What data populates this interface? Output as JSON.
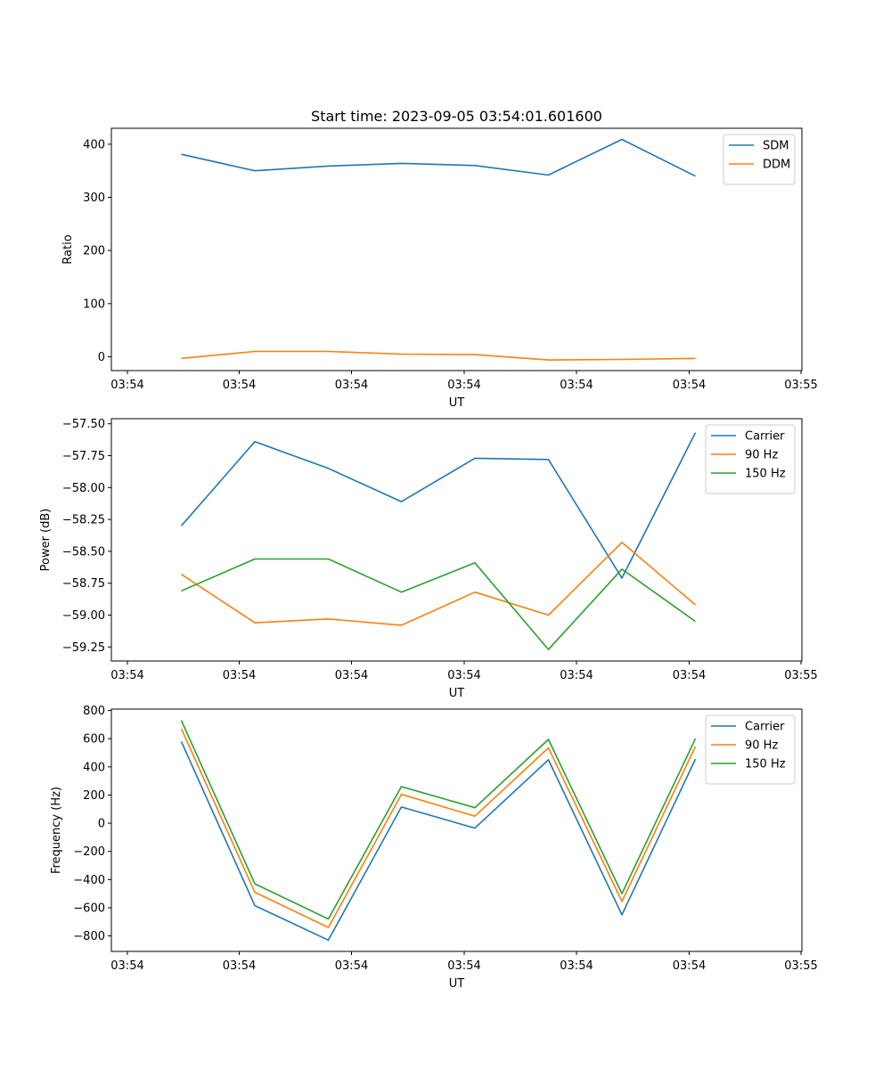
{
  "figure_title": "Start time: 2023-09-05 03:54:01.601600",
  "chart_data": [
    {
      "type": "line",
      "title": "Start time: 2023-09-05 03:54:01.601600",
      "xlabel": "UT",
      "ylabel": "Ratio",
      "x_tick_labels": [
        "03:54",
        "03:54",
        "03:54",
        "03:54",
        "03:54",
        "03:54",
        "03:55"
      ],
      "y_ticks": [
        0,
        100,
        200,
        300,
        400
      ],
      "y_tick_labels": [
        "0",
        "100",
        "200",
        "300",
        "400"
      ],
      "ylim": [
        -26,
        430
      ],
      "x": [
        1,
        2,
        3,
        4,
        5,
        6,
        7,
        8
      ],
      "legend_position": "top-right",
      "series": [
        {
          "name": "SDM",
          "color": "#1f77b4",
          "values": [
            381,
            350,
            359,
            364,
            360,
            342,
            409,
            340
          ]
        },
        {
          "name": "DDM",
          "color": "#ff7f0e",
          "values": [
            -3,
            10,
            10,
            5,
            4,
            -6,
            -5,
            -3
          ]
        }
      ]
    },
    {
      "type": "line",
      "title": "",
      "xlabel": "UT",
      "ylabel": "Power (dB)",
      "x_tick_labels": [
        "03:54",
        "03:54",
        "03:54",
        "03:54",
        "03:54",
        "03:54",
        "03:55"
      ],
      "y_ticks": [
        -57.5,
        -57.75,
        -58.0,
        -58.25,
        -58.5,
        -58.75,
        -59.0,
        -59.25
      ],
      "y_tick_labels": [
        "−57.50",
        "−57.75",
        "−58.00",
        "−58.25",
        "−58.50",
        "−58.75",
        "−59.00",
        "−59.25"
      ],
      "ylim": [
        -59.36,
        -57.46
      ],
      "x": [
        1,
        2,
        3,
        4,
        5,
        6,
        7,
        8
      ],
      "legend_position": "top-right",
      "series": [
        {
          "name": "Carrier",
          "color": "#1f77b4",
          "values": [
            -58.3,
            -57.64,
            -57.85,
            -58.11,
            -57.77,
            -57.78,
            -58.71,
            -57.57
          ]
        },
        {
          "name": "90 Hz",
          "color": "#ff7f0e",
          "values": [
            -58.68,
            -59.06,
            -59.03,
            -59.08,
            -58.82,
            -59.0,
            -58.43,
            -58.92
          ]
        },
        {
          "name": "150 Hz",
          "color": "#2ca02c",
          "values": [
            -58.81,
            -58.56,
            -58.56,
            -58.82,
            -58.59,
            -59.27,
            -58.64,
            -59.05
          ]
        }
      ]
    },
    {
      "type": "line",
      "title": "",
      "xlabel": "UT",
      "ylabel": "Frequency (Hz)",
      "x_tick_labels": [
        "03:54",
        "03:54",
        "03:54",
        "03:54",
        "03:54",
        "03:54",
        "03:55"
      ],
      "y_ticks": [
        800,
        600,
        400,
        200,
        0,
        -200,
        -400,
        -600,
        -800
      ],
      "y_tick_labels": [
        "800",
        "600",
        "400",
        "200",
        "0",
        "−200",
        "−400",
        "−600",
        "−800"
      ],
      "ylim": [
        -910,
        810
      ],
      "x": [
        1,
        2,
        3,
        4,
        5,
        6,
        7,
        8
      ],
      "legend_position": "top-right",
      "series": [
        {
          "name": "Carrier",
          "color": "#1f77b4",
          "values": [
            580,
            -585,
            -830,
            115,
            -35,
            450,
            -650,
            455
          ]
        },
        {
          "name": "90 Hz",
          "color": "#ff7f0e",
          "values": [
            670,
            -490,
            -740,
            205,
            50,
            535,
            -555,
            545
          ]
        },
        {
          "name": "150 Hz",
          "color": "#2ca02c",
          "values": [
            730,
            -430,
            -680,
            260,
            110,
            595,
            -500,
            600
          ]
        }
      ]
    }
  ]
}
